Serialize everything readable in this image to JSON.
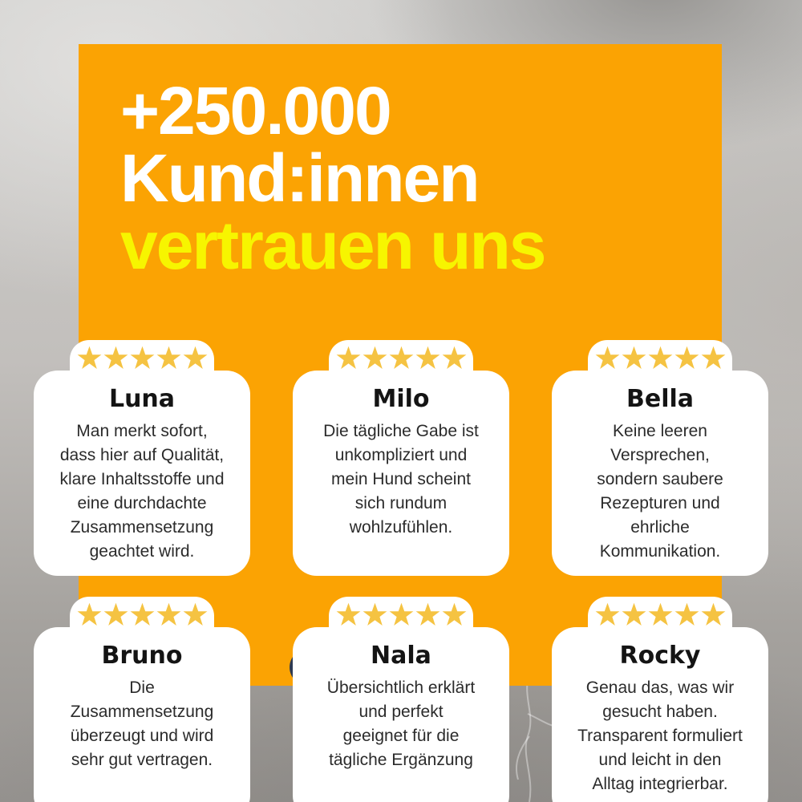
{
  "headline": {
    "line1": "+250.000",
    "line2": "Kund:innen",
    "line3": "vertrauen uns"
  },
  "colors": {
    "banner_orange": "#FBA303",
    "headline_white": "#FFFFFF",
    "highlight_yellow": "#F7F500",
    "star_gold": "#F5C342",
    "card_white": "#FFFFFF",
    "name_black": "#141414",
    "review_dark_gray": "#2B2B2B",
    "navy_dot": "#2E3A52"
  },
  "cards": [
    {
      "name": "Luna",
      "rating": 5,
      "review": "Man merkt sofort,\ndass hier auf Qualität,\nklare Inhaltsstoffe und\neine durchdachte\nZusammensetzung\ngeachtet wird."
    },
    {
      "name": "Milo",
      "rating": 5,
      "review": "Die tägliche Gabe ist\nunkompliziert und\nmein Hund scheint\nsich rundum\nwohlzufühlen."
    },
    {
      "name": "Bella",
      "rating": 5,
      "review": "Keine leeren\nVersprechen,\nsondern saubere\nRezepturen und\nehrliche\nKommunikation."
    },
    {
      "name": "Bruno",
      "rating": 5,
      "review": "Die\nZusammensetzung\nüberzeugt und wird\nsehr gut vertragen."
    },
    {
      "name": "Nala",
      "rating": 5,
      "review": "Übersichtlich erklärt\nund perfekt\ngeeignet für die\ntägliche Ergänzung"
    },
    {
      "name": "Rocky",
      "rating": 5,
      "review": "Genau das, was wir\ngesucht haben.\nTransparent formuliert\nund leicht in den\nAlltag integrierbar."
    }
  ]
}
